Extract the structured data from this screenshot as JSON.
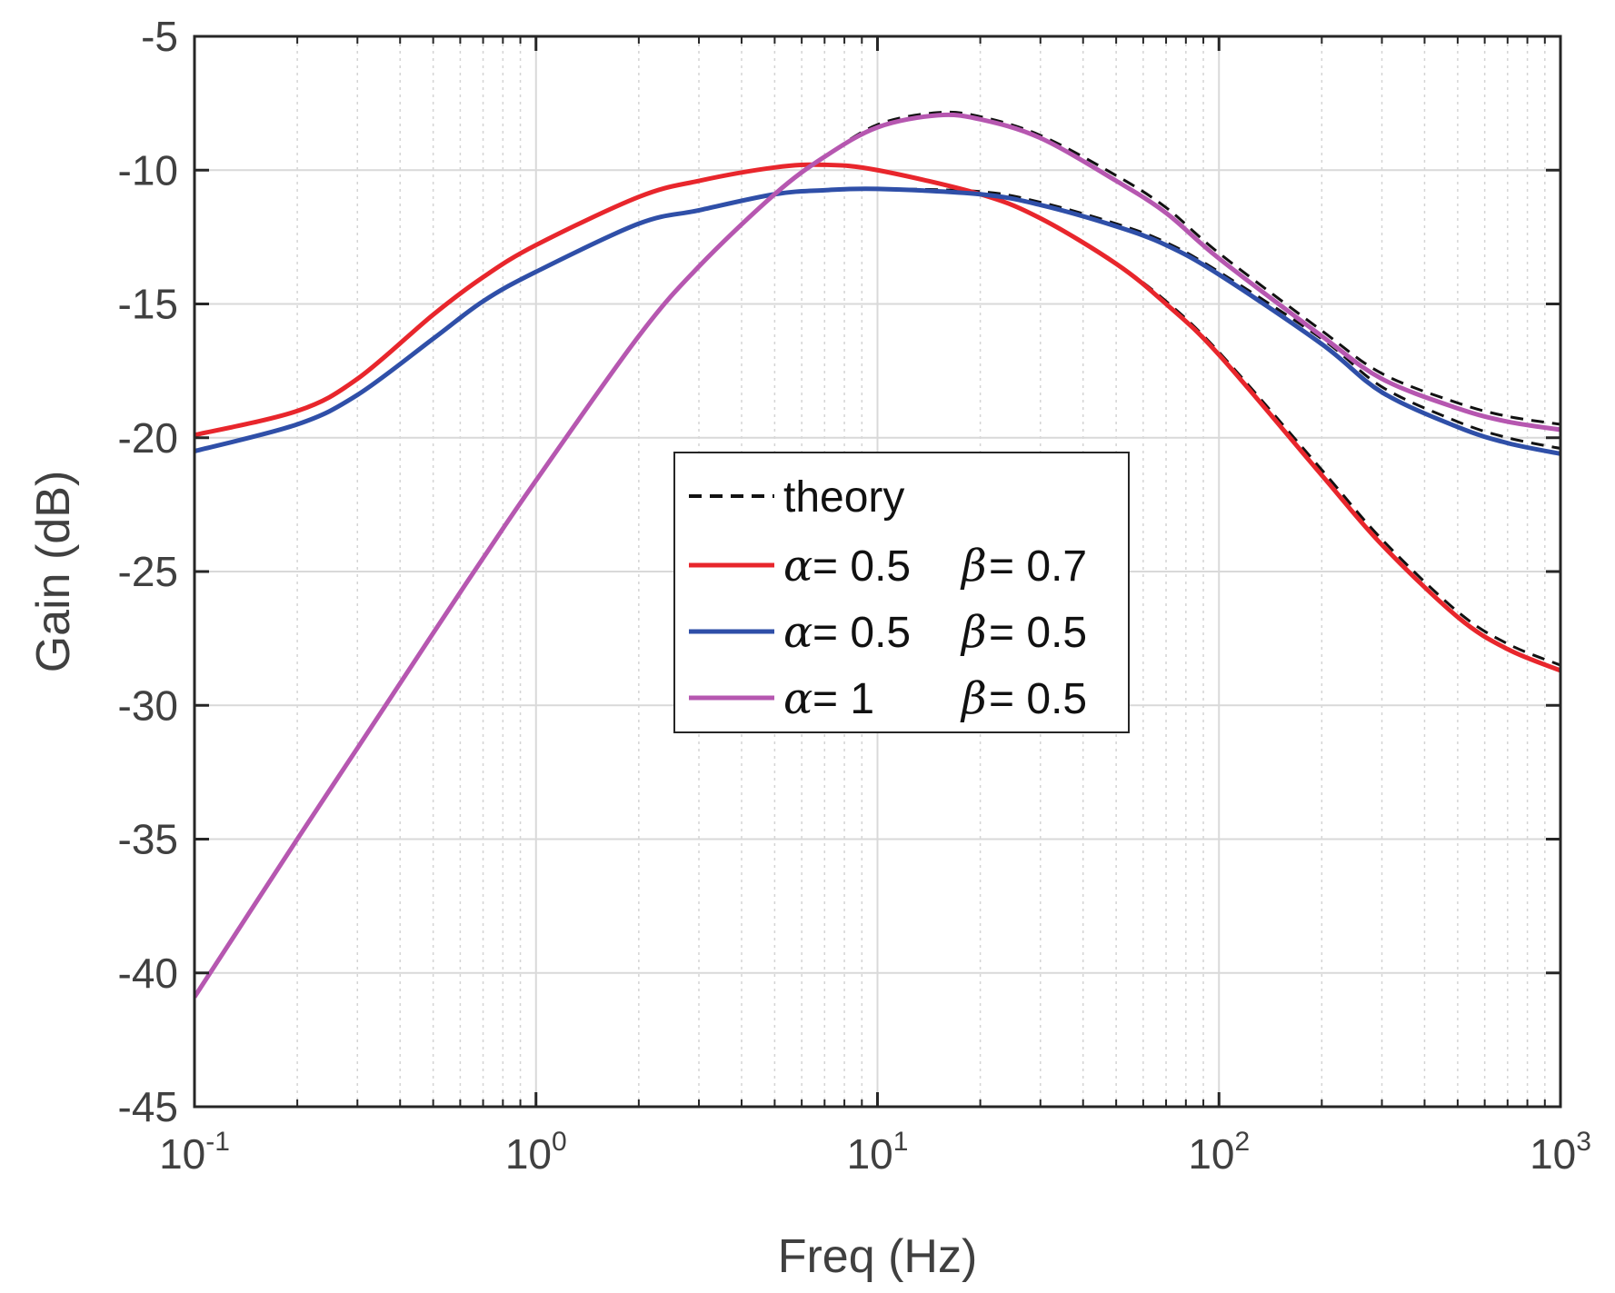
{
  "chart_data": {
    "type": "line",
    "title": "",
    "xlabel": "Freq (Hz)",
    "ylabel": "Gain (dB)",
    "xscale": "log",
    "xlim": [
      0.1,
      1000
    ],
    "ylim": [
      -45,
      -5
    ],
    "grid": true,
    "x_ticks": [
      {
        "base": "10",
        "exp": "-1",
        "value": 0.1
      },
      {
        "base": "10",
        "exp": "0",
        "value": 1
      },
      {
        "base": "10",
        "exp": "1",
        "value": 10
      },
      {
        "base": "10",
        "exp": "2",
        "value": 100
      },
      {
        "base": "10",
        "exp": "3",
        "value": 1000
      }
    ],
    "y_ticks": [
      {
        "label": "-5",
        "value": -5
      },
      {
        "label": "-10",
        "value": -10
      },
      {
        "label": "-15",
        "value": -15
      },
      {
        "label": "-20",
        "value": -20
      },
      {
        "label": "-25",
        "value": -25
      },
      {
        "label": "-30",
        "value": -30
      },
      {
        "label": "-35",
        "value": -35
      },
      {
        "label": "-40",
        "value": -40
      },
      {
        "label": "-45",
        "value": -45
      }
    ],
    "legend_position": "center",
    "series": [
      {
        "name": "α = 0.5 β = 0.7",
        "legend": {
          "a_sym": "α",
          "a_val": " = 0.5",
          "b_sym": "β",
          "b_val": " = 0.7"
        },
        "color": "#e8262c",
        "x": [
          0.1,
          0.2,
          0.3,
          0.5,
          0.7,
          1,
          2,
          3,
          5,
          7,
          10,
          20,
          30,
          50,
          70,
          100,
          200,
          300,
          500,
          700,
          1000
        ],
        "y": [
          -19.9,
          -19.0,
          -17.8,
          -15.4,
          -14.0,
          -12.8,
          -11.0,
          -10.4,
          -9.9,
          -9.8,
          -10.0,
          -10.9,
          -11.8,
          -13.5,
          -15.0,
          -16.9,
          -21.4,
          -24.0,
          -26.7,
          -27.9,
          -28.7
        ],
        "theory": {
          "x": [
            0.1,
            0.2,
            0.3,
            0.5,
            0.7,
            1,
            2,
            3,
            5,
            7,
            10,
            20,
            30,
            50,
            70,
            100,
            200,
            300,
            500,
            700,
            1000
          ],
          "y": [
            -19.9,
            -19.0,
            -17.8,
            -15.4,
            -14.0,
            -12.8,
            -11.0,
            -10.4,
            -9.9,
            -9.8,
            -10.0,
            -10.9,
            -11.8,
            -13.5,
            -14.9,
            -16.8,
            -21.2,
            -23.8,
            -26.5,
            -27.7,
            -28.5
          ]
        }
      },
      {
        "name": "α = 0.5 β = 0.5",
        "legend": {
          "a_sym": "α",
          "a_val": " = 0.5",
          "b_sym": "β",
          "b_val": " = 0.5"
        },
        "color": "#2f4fa8",
        "x": [
          0.1,
          0.2,
          0.3,
          0.5,
          0.7,
          1,
          2,
          3,
          5,
          7,
          10,
          20,
          30,
          50,
          70,
          100,
          200,
          300,
          500,
          700,
          1000
        ],
        "y": [
          -20.5,
          -19.5,
          -18.4,
          -16.3,
          -14.9,
          -13.8,
          -12.0,
          -11.5,
          -10.9,
          -10.75,
          -10.7,
          -10.9,
          -11.3,
          -12.1,
          -12.8,
          -13.9,
          -16.5,
          -18.3,
          -19.6,
          -20.2,
          -20.6
        ],
        "theory": {
          "x": [
            0.1,
            0.2,
            0.3,
            0.5,
            0.7,
            1,
            2,
            3,
            5,
            7,
            10,
            20,
            30,
            50,
            70,
            100,
            200,
            300,
            500,
            700,
            1000
          ],
          "y": [
            -20.5,
            -19.5,
            -18.4,
            -16.3,
            -14.9,
            -13.8,
            -12.0,
            -11.5,
            -10.9,
            -10.75,
            -10.7,
            -10.8,
            -11.2,
            -12.0,
            -12.7,
            -13.8,
            -16.3,
            -18.1,
            -19.4,
            -20.0,
            -20.4
          ]
        }
      },
      {
        "name": "α = 1 β = 0.5",
        "legend": {
          "a_sym": "α",
          "a_val": " = 1",
          "b_sym": "β",
          "b_val": " = 0.5"
        },
        "color": "#b657b0",
        "x": [
          0.1,
          0.2,
          0.3,
          0.5,
          0.7,
          1,
          2,
          3,
          5,
          7,
          10,
          15,
          20,
          30,
          50,
          70,
          100,
          200,
          300,
          500,
          700,
          1000
        ],
        "y": [
          -40.9,
          -35.0,
          -31.6,
          -27.3,
          -24.5,
          -21.6,
          -16.2,
          -13.6,
          -10.9,
          -9.5,
          -8.4,
          -7.95,
          -8.1,
          -8.8,
          -10.4,
          -11.6,
          -13.3,
          -16.2,
          -17.8,
          -18.9,
          -19.4,
          -19.7
        ],
        "theory": {
          "x": [
            0.1,
            0.2,
            0.3,
            0.5,
            0.7,
            1,
            2,
            3,
            5,
            7,
            10,
            15,
            20,
            30,
            50,
            70,
            100,
            200,
            300,
            500,
            700,
            1000
          ],
          "y": [
            -40.9,
            -35.0,
            -31.6,
            -27.3,
            -24.5,
            -21.6,
            -16.2,
            -13.6,
            -10.9,
            -9.5,
            -8.3,
            -7.85,
            -8.0,
            -8.7,
            -10.2,
            -11.4,
            -13.1,
            -16.0,
            -17.6,
            -18.7,
            -19.2,
            -19.5
          ]
        }
      }
    ],
    "theory_legend": "theory",
    "theory_color": "#111111"
  }
}
